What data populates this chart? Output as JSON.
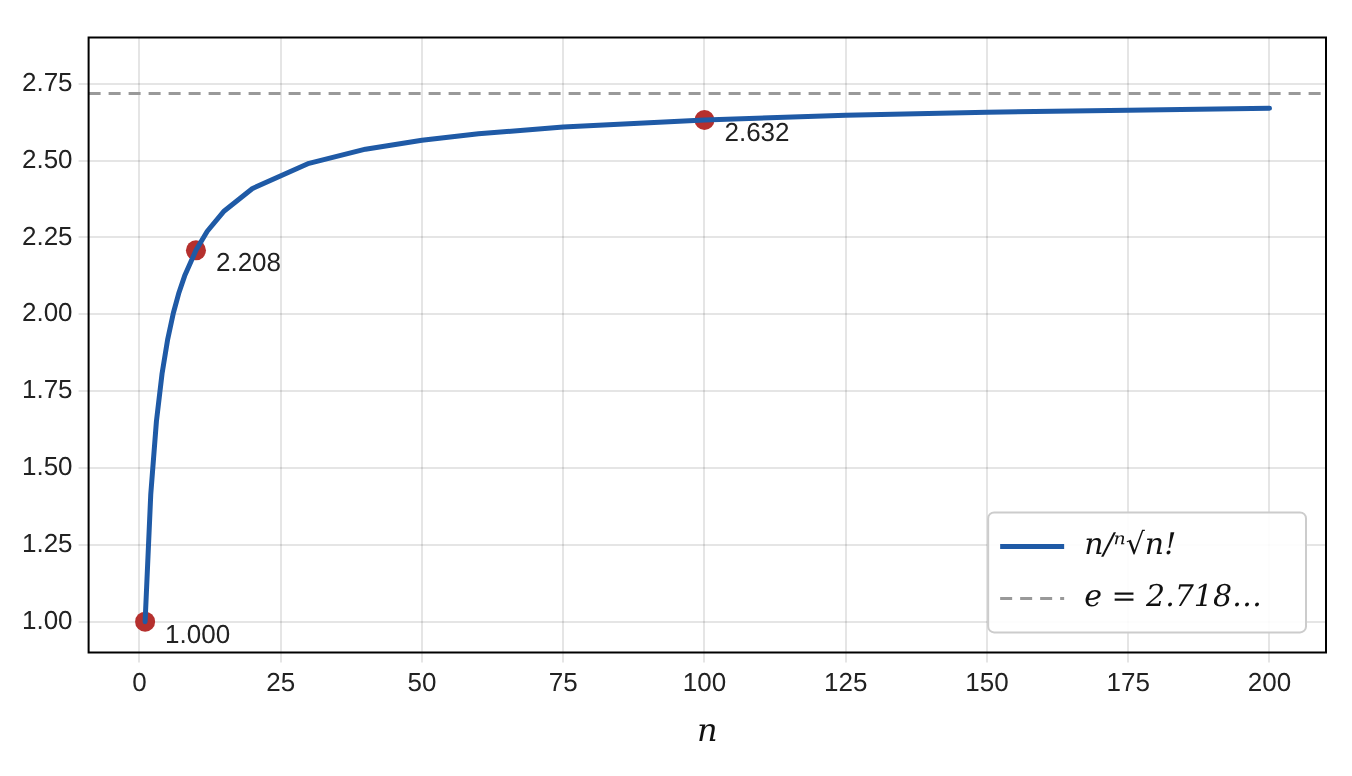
{
  "chart_data": {
    "type": "line",
    "xlabel": "n",
    "xlim": [
      -9,
      210
    ],
    "xticks": [
      0,
      25,
      50,
      75,
      100,
      125,
      150,
      175,
      200
    ],
    "ylim": [
      0.9,
      2.9
    ],
    "yticks": [
      {
        "value": 1,
        "label": "1.00"
      },
      {
        "value": 1.25,
        "label": "1.25"
      },
      {
        "value": 1.5,
        "label": "1.50"
      },
      {
        "value": 1.75,
        "label": "1.75"
      },
      {
        "value": 2,
        "label": "2.00"
      },
      {
        "value": 2.25,
        "label": "2.25"
      },
      {
        "value": 2.5,
        "label": "2.50"
      },
      {
        "value": 2.75,
        "label": "2.75"
      }
    ],
    "grid": true,
    "legend": "bottom right",
    "series": [
      {
        "name": "n/ⁿ√n!",
        "type": "line",
        "color": "#1f5aa6",
        "x": [
          1,
          2,
          3,
          4,
          5,
          6,
          7,
          8,
          10,
          12,
          15,
          20,
          30,
          40,
          50,
          60,
          75,
          100,
          125,
          150,
          175,
          200
        ],
        "values": [
          1.0,
          1.414,
          1.651,
          1.807,
          1.919,
          2.004,
          2.071,
          2.125,
          2.208,
          2.27,
          2.336,
          2.409,
          2.491,
          2.537,
          2.566,
          2.587,
          2.609,
          2.632,
          2.647,
          2.657,
          2.664,
          2.67
        ]
      },
      {
        "type": "scatter",
        "marker": "circle",
        "color": "#b5302e",
        "x": [
          1,
          10,
          100
        ],
        "values": [
          1.0,
          2.208,
          2.632
        ],
        "value_labels": [
          "1.000",
          "2.208",
          "2.632"
        ]
      }
    ],
    "ref_lines": [
      {
        "axis": "y",
        "value": 2.718,
        "label": "e = 2.718…",
        "color": "#999999",
        "line_style": "dashed"
      }
    ]
  }
}
